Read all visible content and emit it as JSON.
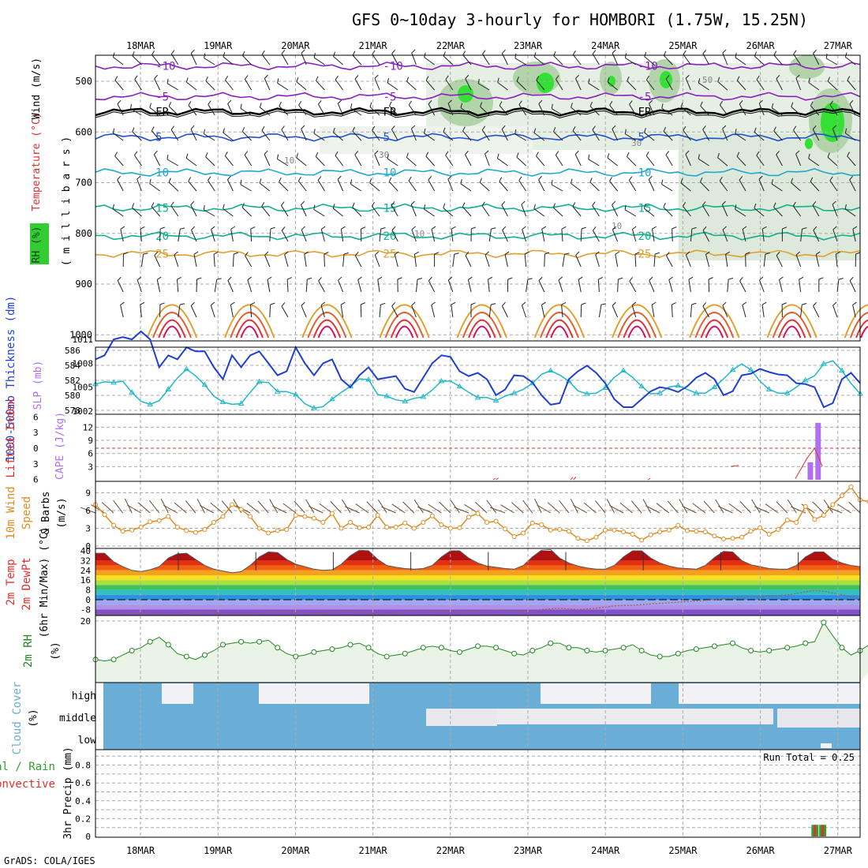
{
  "title": "GFS 0~10day 3-hourly for HOMBORI (1.75W, 15.25N)",
  "footer": "GrADS: COLA/IGES",
  "run_total": "Run Total = 0.25",
  "dates": [
    "18MAR",
    "19MAR",
    "20MAR",
    "21MAR",
    "22MAR",
    "23MAR",
    "24MAR",
    "25MAR",
    "26MAR",
    "27MAR"
  ],
  "colors": {
    "slp": "#1f3fd0",
    "thickness": "#20b8c8",
    "cape": "#b070f0",
    "lifted": "#e03030",
    "wind_speed": "#e08a20",
    "barb": "#6b4a2a",
    "rh2m": "#228822",
    "rh_fill": "#e9f3e6",
    "cloud": "#6aadd6",
    "cloud_gap": "#f2f2f6",
    "precip_total": "#30a030",
    "precip_conv": "#e03030",
    "contour_purple": "#8a20c0",
    "contour_blue": "#2050d0",
    "contour_cyan": "#20a8d0",
    "contour_teal": "#10b090",
    "contour_orange": "#e0a030",
    "contour_red": "#e03030"
  },
  "chart_data": [
    {
      "type": "line",
      "panel": "upper-air cross-section",
      "ylabel_parts": [
        "RH (%)",
        "Temperature (°C)",
        "Wind (m/s)"
      ],
      "ylabel_right": "( m i l l i b a r s )",
      "yticks": [
        500,
        600,
        700,
        800,
        900,
        1000
      ],
      "ylim": [
        1000,
        450
      ],
      "freezing_label": "FR",
      "temperature_contours": [
        {
          "level": -10,
          "pressure": 470,
          "label": "-10"
        },
        {
          "level": -5,
          "pressure": 530,
          "label": "-5"
        },
        {
          "level": 0,
          "pressure": 560,
          "label": "FR"
        },
        {
          "level": 5,
          "pressure": 610,
          "label": "5"
        },
        {
          "level": 10,
          "pressure": 680,
          "label": "10"
        },
        {
          "level": 15,
          "pressure": 750,
          "label": "15"
        },
        {
          "level": 20,
          "pressure": 805,
          "label": "20"
        },
        {
          "level": 25,
          "pressure": 840,
          "label": "25"
        }
      ],
      "rh_labels": [
        "10",
        "30",
        "50"
      ]
    },
    {
      "type": "line",
      "panel": "slp-thickness",
      "ylabel": "1000-500mb Thickness (dm)",
      "ylabel2": "SLP (mb)",
      "yticks_thickness": [
        578,
        580,
        582,
        584,
        586
      ],
      "yticks_slp": [
        1002,
        1005,
        1008,
        1011
      ],
      "series": [
        {
          "name": "SLP (mb)",
          "values": [
            1008.5,
            1009,
            1011,
            1011.3,
            1011,
            1012,
            1011,
            1007.5,
            1009,
            1008.5,
            1010,
            1009.5,
            1009.5,
            1007.5,
            1006,
            1009,
            1007.5,
            1009,
            1009.5,
            1008,
            1006.5,
            1007,
            1010,
            1008,
            1006.5,
            1008,
            1008.5,
            1006,
            1005,
            1006.5,
            1007.5,
            1006,
            1006.2,
            1006.4,
            1004.8,
            1004.4,
            1006.2,
            1008,
            1009,
            1008.8,
            1007,
            1006.4,
            1006.8,
            1006,
            1004,
            1004.7,
            1006.5,
            1006.4,
            1005.6,
            1004,
            1002.8,
            1003,
            1006,
            1007,
            1007.7,
            1006.8,
            1005.5,
            1003.5,
            1002.5,
            1002.5,
            1003.5,
            1004.5,
            1005,
            1004.8,
            1004.4,
            1005.1,
            1006.2,
            1006.8,
            1006,
            1004,
            1004.5,
            1006.5,
            1006.7,
            1007.3,
            1006.9,
            1006.6,
            1006.5,
            1005.5,
            1005.4,
            1005,
            1002.5,
            1003,
            1006,
            1006.8,
            1005.5
          ]
        },
        {
          "name": "1000-500mb Thickness (dm)",
          "values": [
            581.5,
            581.8,
            581.7,
            581.9,
            580.4,
            579.2,
            578.8,
            579.3,
            580.8,
            582.3,
            583.5,
            582.6,
            581.4,
            579.9,
            579.1,
            578.8,
            578.9,
            580.4,
            581.8,
            581.7,
            580.5,
            580.5,
            580.1,
            578.9,
            578.3,
            578.5,
            579.5,
            580.4,
            581.2,
            582.2,
            582.1,
            580.1,
            579.9,
            579.4,
            579.2,
            579.6,
            579.8,
            580.7,
            581.9,
            581.9,
            581.2,
            580.4,
            579.7,
            579.7,
            579.3,
            579.9,
            580.3,
            580.8,
            581.6,
            582.8,
            583.3,
            582.7,
            581.9,
            580.6,
            580.2,
            580.3,
            581,
            582.4,
            583.3,
            582.4,
            581.2,
            580.2,
            580.3,
            581.1,
            581.3,
            580.8,
            580.3,
            580.3,
            581.1,
            582.2,
            583.4,
            584.2,
            583.4,
            581.9,
            580.8,
            580.3,
            580.3,
            581.1,
            582,
            582.6,
            584.2,
            584.6,
            583.3,
            581.6,
            580.2
          ]
        }
      ]
    },
    {
      "type": "bar",
      "panel": "cape-lifted",
      "ylabel": "Lifted Index",
      "ylabel2": "CAPE (J/kg)",
      "yticks_cape": [
        3,
        6,
        9,
        12
      ],
      "yticks_li": [
        -6,
        -3,
        0,
        3,
        6
      ],
      "ylim_cape": [
        0,
        14
      ],
      "ylim_li": [
        6,
        -6
      ],
      "series": [
        {
          "name": "CAPE (J/kg)",
          "x": [
            26.65,
            26.75
          ],
          "values": [
            4,
            13
          ]
        },
        {
          "name": "Lifted Index",
          "x": [
            22.58,
            22.62,
            23.58,
            23.62,
            24.58,
            25.62,
            25.72,
            26.45,
            26.6,
            26.7,
            26.8
          ],
          "values": [
            5.8,
            5.7,
            5.6,
            5.5,
            5.8,
            3.5,
            3.3,
            5.9,
            2.0,
            0.0,
            3.5
          ]
        }
      ]
    },
    {
      "type": "line",
      "panel": "wind-10m",
      "ylabel": "10m Wind Speed & Barbs (m/s)",
      "yticks": [
        0,
        3,
        6,
        9
      ],
      "ylim": [
        0,
        10
      ],
      "series": [
        {
          "name": "10m Wind Speed",
          "values": [
            7,
            5.3,
            3.5,
            2.5,
            2.7,
            3.2,
            4.1,
            4.3,
            5,
            3.2,
            2.6,
            2.3,
            2.8,
            4,
            5,
            7,
            6.2,
            5,
            3,
            2.2,
            2.6,
            2.8,
            5.2,
            5,
            4.7,
            4,
            5.5,
            3,
            4,
            3.1,
            3.2,
            5.2,
            3.2,
            3.2,
            3.9,
            3,
            4,
            5.1,
            3.6,
            3,
            3.1,
            4.9,
            5.5,
            4,
            4.2,
            2.9,
            1.6,
            2.2,
            3.9,
            3.6,
            2.7,
            2.8,
            2.5,
            1.3,
            0.9,
            1.5,
            2.7,
            2.7,
            2.4,
            2,
            1,
            1.9,
            2.4,
            2.7,
            3.5,
            2.6,
            2.5,
            2.4,
            1.7,
            1.2,
            1.3,
            1.5,
            2.5,
            3.1,
            2,
            2.8,
            4.4,
            4,
            6.7,
            4.5,
            5.2,
            7,
            8.5,
            10,
            7.8,
            7.5
          ]
        }
      ]
    },
    {
      "type": "area",
      "panel": "temp-2m",
      "ylabel": "2m Temp",
      "ylabel2": "2m DewPt",
      "ylabel3": "(6hr Min/Max) (°C)",
      "yticks": [
        -8,
        0,
        8,
        16,
        24,
        32,
        40
      ],
      "ylim": [
        -14,
        42
      ],
      "series": [
        {
          "name": "2m Temp",
          "values": [
            38,
            38,
            31,
            27,
            24,
            23,
            24.5,
            27,
            34,
            37.5,
            38,
            33,
            28,
            25,
            23.5,
            22,
            23,
            28,
            35,
            39,
            38.5,
            33,
            29,
            27,
            25,
            24,
            24.5,
            29,
            36,
            40.5,
            40,
            33,
            28,
            26.5,
            25.5,
            25,
            25.5,
            28,
            35,
            40,
            40,
            34,
            30,
            27.5,
            26.5,
            25.5,
            25,
            28,
            35,
            40.5,
            41,
            34,
            30,
            27.5,
            26,
            25,
            25,
            28,
            35,
            40,
            40,
            34,
            30,
            27.5,
            26,
            25.5,
            25,
            28,
            34.5,
            39.5,
            39,
            32,
            28.5,
            27,
            25.5,
            25,
            25,
            28,
            35,
            39,
            39,
            33,
            30,
            28,
            27
          ]
        },
        {
          "name": "2m DewPt",
          "values": [
            -12,
            -11.5,
            -12,
            -11,
            -11,
            -10.5,
            -11,
            -12,
            -12.5,
            -12,
            -11,
            -10.5,
            -10,
            -11,
            -11.5,
            -12,
            -12.5,
            -12,
            -11,
            -10.5,
            -10,
            -10,
            -10.5,
            -11,
            -11.5,
            -11,
            -10.5,
            -10,
            -9.5,
            -10,
            -10.5,
            -11,
            -11.5,
            -11,
            -10,
            -9.5,
            -9,
            -9,
            -9.5,
            -10,
            -10.5,
            -10,
            -9.5,
            -9,
            -8.5,
            -9,
            -9.5,
            -10,
            -9,
            -8,
            -7.5,
            -7,
            -7.5,
            -8,
            -7.5,
            -7,
            -6,
            -5,
            -4.5,
            -4.5,
            -4,
            -3.5,
            -3,
            -2.5,
            -2,
            -1.5,
            -1,
            -0.5,
            0,
            0.5,
            1,
            2,
            2.5,
            2,
            3,
            3.5,
            4,
            5,
            6.5,
            7.5,
            7,
            5.5,
            4,
            2.5,
            1
          ]
        }
      ]
    },
    {
      "type": "line",
      "panel": "rh-2m",
      "ylabel": "2m RH (%)",
      "yticks": [
        20
      ],
      "ylim": [
        0,
        22
      ],
      "series": [
        {
          "name": "2m RH",
          "values": [
            7,
            6.5,
            7,
            8.5,
            10,
            11,
            13,
            14.5,
            12,
            9,
            8,
            7,
            8.5,
            10,
            12,
            12.5,
            13,
            12.5,
            13,
            13.5,
            11,
            9,
            8,
            8.5,
            9.5,
            10,
            10.5,
            11,
            12,
            12.5,
            11,
            9,
            8,
            8.5,
            9,
            10,
            11,
            11.5,
            11,
            10,
            9.5,
            10.5,
            11.5,
            11.5,
            11,
            10,
            9,
            8.5,
            10,
            11,
            12.5,
            12.5,
            11,
            11,
            10,
            9.5,
            10,
            10.5,
            11,
            12,
            10,
            8.5,
            8,
            8,
            9,
            10,
            10.5,
            11,
            11.5,
            12,
            12.5,
            11,
            10,
            9.5,
            10,
            10.5,
            11,
            11.5,
            12.5,
            13,
            19.5,
            15,
            11,
            8.5,
            10,
            12,
            14,
            16,
            17,
            18
          ]
        }
      ]
    },
    {
      "type": "heatmap",
      "panel": "cloud-cover",
      "ylabel": "Cloud Cover (%)",
      "levels": [
        "high",
        "middle",
        "low"
      ]
    },
    {
      "type": "bar",
      "panel": "precip",
      "ylabel_total": "Total / Rain",
      "ylabel_conv": "Convective",
      "ylabel": "3hr Precip (mm)",
      "yticks": [
        0,
        0.2,
        0.4,
        0.6,
        0.8
      ],
      "ylim": [
        0,
        0.96
      ],
      "series": [
        {
          "name": "Total / Rain",
          "x": [
            26.72,
            26.82
          ],
          "values": [
            0.13,
            0.13
          ]
        },
        {
          "name": "Convective",
          "x": [
            26.72,
            26.82
          ],
          "values": [
            0.13,
            0.13
          ]
        }
      ]
    }
  ]
}
